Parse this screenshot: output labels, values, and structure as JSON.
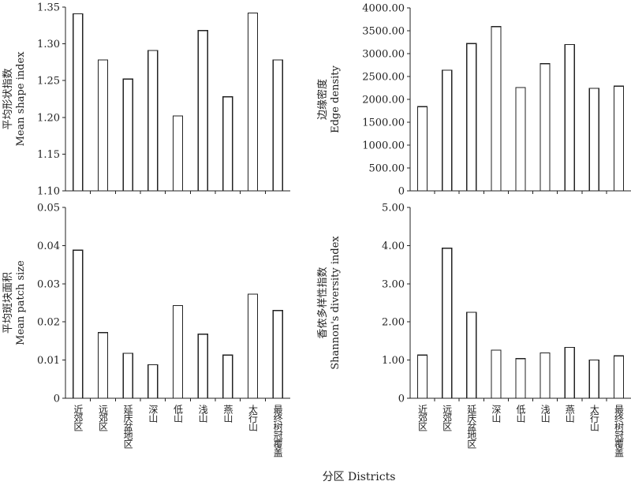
{
  "figure": {
    "xlabel": "分区 Districts"
  },
  "chart_data": [
    {
      "type": "bar",
      "categories": [
        "近郊区",
        "远郊区",
        "延庆盆地区",
        "深山",
        "低山",
        "浅山",
        "燕山",
        "太行山",
        "最终树冠覆盖"
      ],
      "values": [
        1.341,
        1.278,
        1.252,
        1.291,
        1.202,
        1.318,
        1.228,
        1.342,
        1.278
      ],
      "ylabel_zh": "平均形状指数",
      "ylabel_en": "Mean shape index",
      "ylim": [
        1.1,
        1.35
      ],
      "yticks": [
        "1.10",
        "1.15",
        "1.20",
        "1.25",
        "1.30",
        "1.35"
      ]
    },
    {
      "type": "bar",
      "categories": [
        "近郊区",
        "远郊区",
        "延庆盆地区",
        "深山",
        "低山",
        "浅山",
        "燕山",
        "太行山",
        "最终树冠覆盖"
      ],
      "values": [
        1840,
        2640,
        3220,
        3590,
        2260,
        2780,
        3200,
        2240,
        2290
      ],
      "ylabel_zh": "边缘密度",
      "ylabel_en": "Edge density",
      "ylim": [
        0,
        4000
      ],
      "yticks": [
        "0",
        "500.00",
        "1000.00",
        "1500.00",
        "2000.00",
        "2500.00",
        "3000.00",
        "3500.00",
        "4000.00"
      ]
    },
    {
      "type": "bar",
      "categories": [
        "近郊区",
        "远郊区",
        "延庆盆地区",
        "深山",
        "低山",
        "浅山",
        "燕山",
        "太行山",
        "最终树冠覆盖"
      ],
      "values": [
        0.0388,
        0.0172,
        0.0118,
        0.0088,
        0.0243,
        0.0168,
        0.0113,
        0.0273,
        0.023
      ],
      "ylabel_zh": "平均斑块面积",
      "ylabel_en": "Mean patch size",
      "ylim": [
        0,
        0.05
      ],
      "yticks": [
        "0",
        "0.01",
        "0.02",
        "0.03",
        "0.04",
        "0.05"
      ]
    },
    {
      "type": "bar",
      "categories": [
        "近郊区",
        "远郊区",
        "延庆盆地区",
        "深山",
        "低山",
        "浅山",
        "燕山",
        "太行山",
        "最终树冠覆盖"
      ],
      "values": [
        1.13,
        3.93,
        2.25,
        1.26,
        1.04,
        1.19,
        1.33,
        1.0,
        1.11
      ],
      "ylabel_zh": "香侬多样性指数",
      "ylabel_en": "Shannon's diversity index",
      "ylim": [
        0,
        5
      ],
      "yticks": [
        "0",
        "1.00",
        "2.00",
        "3.00",
        "4.00",
        "5.00"
      ]
    }
  ]
}
